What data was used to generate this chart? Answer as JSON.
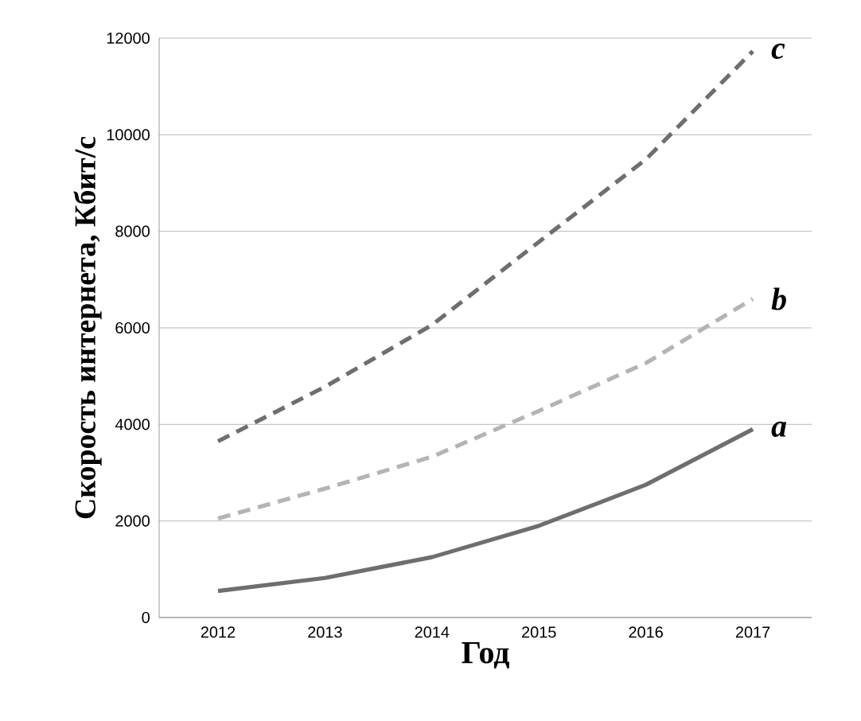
{
  "chart_data": {
    "type": "line",
    "xlabel": "Год",
    "ylabel": "Скорость интернета, Кбит/с",
    "categories": [
      "2012",
      "2013",
      "2014",
      "2015",
      "2016",
      "2017"
    ],
    "ylim": [
      0,
      12000
    ],
    "yticks": [
      0,
      2000,
      4000,
      6000,
      8000,
      10000,
      12000
    ],
    "grid": "y",
    "series": [
      {
        "name": "a",
        "color": "#6e6e6e",
        "line_style": "solid",
        "values": [
          550,
          820,
          1250,
          1900,
          2750,
          3900
        ]
      },
      {
        "name": "b",
        "color": "#b4b4b4",
        "line_style": "dashed",
        "values": [
          2050,
          2670,
          3330,
          4280,
          5270,
          6600
        ]
      },
      {
        "name": "c",
        "color": "#6e6e6e",
        "line_style": "dashed",
        "values": [
          3650,
          4780,
          6060,
          7780,
          9490,
          11730
        ]
      }
    ]
  }
}
